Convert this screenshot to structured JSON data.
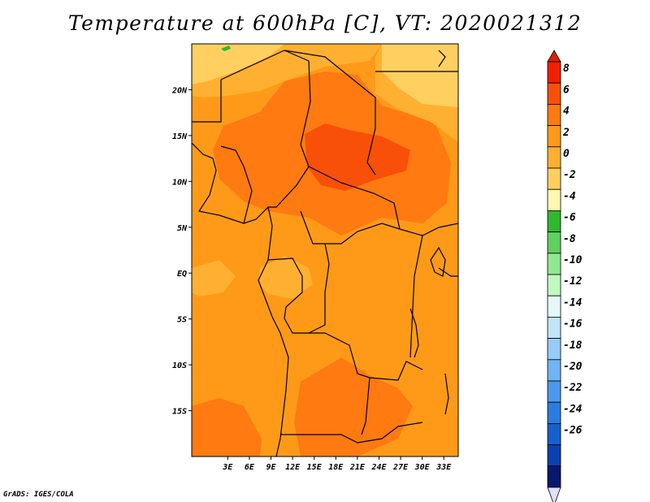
{
  "title": "Temperature at 600hPa [C], VT: 2020021312",
  "credit": "GrADS: IGES/COLA",
  "map": {
    "lon_range": [
      -2,
      35
    ],
    "lat_range": [
      -20,
      25
    ],
    "lon_ticks": [
      {
        "value": 3,
        "label": "3E"
      },
      {
        "value": 6,
        "label": "6E"
      },
      {
        "value": 9,
        "label": "9E"
      },
      {
        "value": 12,
        "label": "12E"
      },
      {
        "value": 15,
        "label": "15E"
      },
      {
        "value": 18,
        "label": "18E"
      },
      {
        "value": 21,
        "label": "21E"
      },
      {
        "value": 24,
        "label": "24E"
      },
      {
        "value": 27,
        "label": "27E"
      },
      {
        "value": 30,
        "label": "30E"
      },
      {
        "value": 33,
        "label": "33E"
      }
    ],
    "lat_ticks": [
      {
        "value": 20,
        "label": "20N"
      },
      {
        "value": 15,
        "label": "15N"
      },
      {
        "value": 10,
        "label": "10N"
      },
      {
        "value": 5,
        "label": "5N"
      },
      {
        "value": 0,
        "label": "EQ"
      },
      {
        "value": -5,
        "label": "5S"
      },
      {
        "value": -10,
        "label": "10S"
      },
      {
        "value": -15,
        "label": "15S"
      }
    ]
  },
  "colorbar": {
    "labels": [
      "8",
      "6",
      "4",
      "2",
      "0",
      "-2",
      "-4",
      "-6",
      "-8",
      "-10",
      "-12",
      "-14",
      "-16",
      "-18",
      "-20",
      "-22",
      "-24",
      "-26"
    ],
    "colors_top_to_bottom": [
      "#f02000",
      "#f85008",
      "#ff7a10",
      "#ff9a18",
      "#ffb030",
      "#ffd060",
      "#fff8b0",
      "#30b830",
      "#60d060",
      "#90e890",
      "#c0f8c0",
      "#e4f8f8",
      "#c0e4f8",
      "#96ccf8",
      "#70b4f4",
      "#4c98ec",
      "#2c7ce0",
      "#1660cc",
      "#0c40b0",
      "#08186c"
    ],
    "top_arrow_color": "#e02000",
    "bottom_arrow_color": "#e0e0f8"
  }
}
